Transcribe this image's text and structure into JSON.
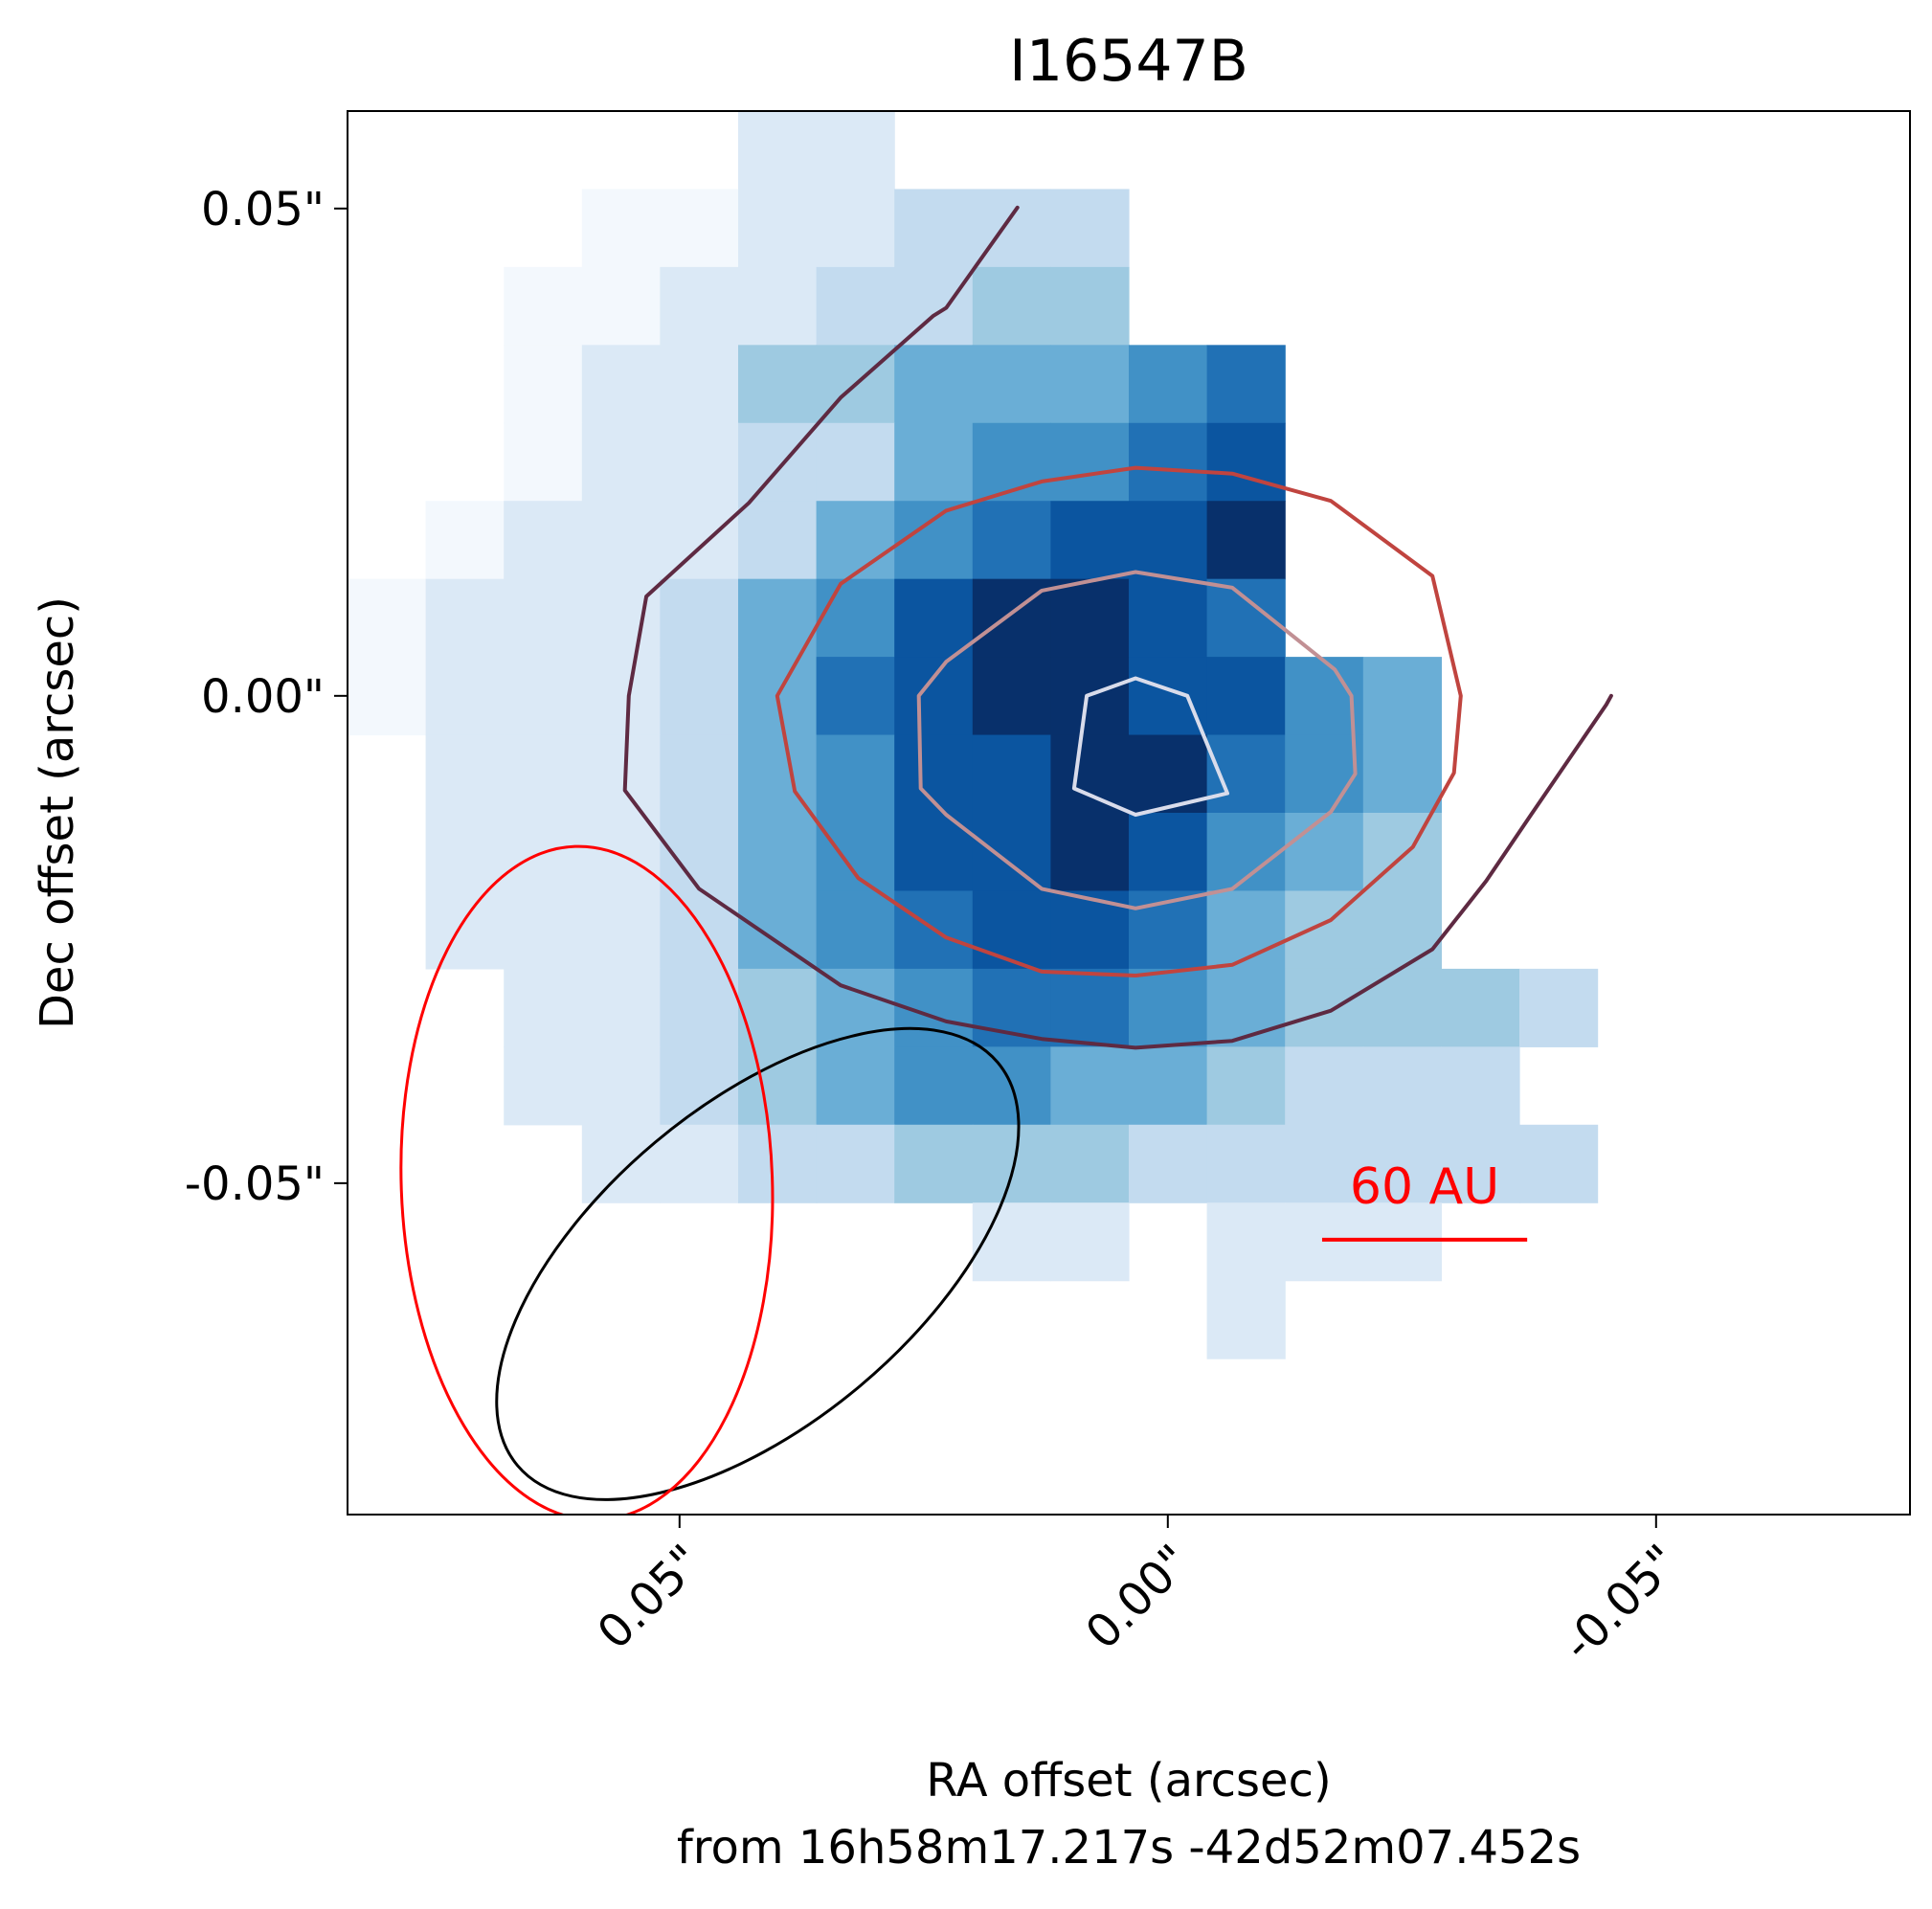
{
  "chart_data": {
    "type": "heatmap",
    "title": "I16547B",
    "xlabel": "RA offset (arcsec)",
    "xlabel_sub": "from 16h58m17.217s -42d52m07.452s",
    "ylabel": "Dec offset (arcsec)",
    "xlim": [
      0.084,
      -0.076
    ],
    "ylim": [
      -0.084,
      0.06
    ],
    "x_ticks": [
      {
        "value": 0.05,
        "label": "0.05\""
      },
      {
        "value": 0.0,
        "label": "0.00\""
      },
      {
        "value": -0.05,
        "label": "-0.05\""
      }
    ],
    "y_ticks": [
      {
        "value": 0.05,
        "label": "0.05\""
      },
      {
        "value": 0.0,
        "label": "0.00\""
      },
      {
        "value": -0.05,
        "label": "-0.05\""
      }
    ],
    "colormap": "Blues",
    "pixel_size_arcsec": 0.008,
    "grid_origin": {
      "ra": 0.084,
      "dec": 0.06
    },
    "grid_rows": [
      ".....11...........",
      "...0011222........",
      "..00112233........",
      "..0113344456......",
      "..0112245567......",
      ".01112456778......",
      "011124578876......",
      "01112467887754....",
      ".1112457788654....",
      ".1112457787543....",
      ".1112456776433....",
      "..11234566543332..",
      "..1123455443222...",
      "...1122333222222..",
      "........11.111....",
      "...........1......"
    ],
    "contours": [
      {
        "name": "level-1",
        "color": "#5e2a42",
        "closed": false,
        "points": [
          [
            0.0154,
            0.0501
          ],
          [
            0.0227,
            0.0398
          ],
          [
            0.024,
            0.039
          ],
          [
            0.0335,
            0.0306
          ],
          [
            0.0429,
            0.0198
          ],
          [
            0.0534,
            0.0102
          ],
          [
            0.0552,
            0.0
          ],
          [
            0.0556,
            -0.0097
          ],
          [
            0.048,
            -0.0198
          ],
          [
            0.0335,
            -0.0297
          ],
          [
            0.0227,
            -0.0334
          ],
          [
            0.0129,
            -0.0352
          ],
          [
            0.0033,
            -0.0361
          ],
          [
            -0.0066,
            -0.0354
          ],
          [
            -0.0167,
            -0.0323
          ],
          [
            -0.0271,
            -0.026
          ],
          [
            -0.0326,
            -0.019
          ],
          [
            -0.0372,
            -0.0122
          ],
          [
            -0.0449,
            -0.0009
          ],
          [
            -0.0454,
            0.0
          ]
        ]
      },
      {
        "name": "level-2",
        "color": "#c0443f",
        "closed": true,
        "points": [
          [
            0.0033,
            0.0234
          ],
          [
            0.0129,
            0.022
          ],
          [
            0.0227,
            0.019
          ],
          [
            0.0335,
            0.0115
          ],
          [
            0.04,
            0.0
          ],
          [
            0.0382,
            -0.0098
          ],
          [
            0.0317,
            -0.0187
          ],
          [
            0.0227,
            -0.0248
          ],
          [
            0.0129,
            -0.0283
          ],
          [
            0.0033,
            -0.0287
          ],
          [
            -0.0066,
            -0.0276
          ],
          [
            -0.0167,
            -0.023
          ],
          [
            -0.0251,
            -0.0155
          ],
          [
            -0.0293,
            -0.0079
          ],
          [
            -0.03,
            0.0
          ],
          [
            -0.0271,
            0.0123
          ],
          [
            -0.0167,
            0.02
          ],
          [
            -0.0066,
            0.0228
          ]
        ]
      },
      {
        "name": "level-3",
        "color": "#c19094",
        "closed": true,
        "points": [
          [
            0.0033,
            0.0127
          ],
          [
            0.0129,
            0.0108
          ],
          [
            0.0227,
            0.0035
          ],
          [
            0.0255,
            0.0
          ],
          [
            0.0253,
            -0.0095
          ],
          [
            0.0227,
            -0.0122
          ],
          [
            0.0129,
            -0.0198
          ],
          [
            0.0033,
            -0.0218
          ],
          [
            -0.0066,
            -0.0198
          ],
          [
            -0.0167,
            -0.0119
          ],
          [
            -0.0192,
            -0.008
          ],
          [
            -0.0188,
            0.0
          ],
          [
            -0.0171,
            0.0027
          ],
          [
            -0.0066,
            0.0111
          ]
        ]
      },
      {
        "name": "level-4",
        "color": "#d9dceb",
        "closed": true,
        "points": [
          [
            0.0033,
            0.0018
          ],
          [
            0.0083,
            0.0
          ],
          [
            0.0096,
            -0.0095
          ],
          [
            0.0033,
            -0.0122
          ],
          [
            -0.0061,
            -0.01
          ],
          [
            -0.002,
            0.0
          ]
        ]
      }
    ],
    "beams": [
      {
        "name": "beam-black",
        "color": "#000000",
        "center": [
          0.042,
          -0.0583
        ],
        "semi_major": 0.0321,
        "semi_minor": 0.0163,
        "pa_deg": 40
      },
      {
        "name": "beam-red",
        "color": "#ff0000",
        "center": [
          0.0595,
          -0.05
        ],
        "semi_major": 0.0345,
        "semi_minor": 0.019,
        "pa_deg": 92
      }
    ],
    "scale_bar": {
      "label": "60 AU",
      "color": "#ff0000",
      "x_start": -0.0158,
      "x_end": -0.0368,
      "y": -0.0558
    }
  }
}
